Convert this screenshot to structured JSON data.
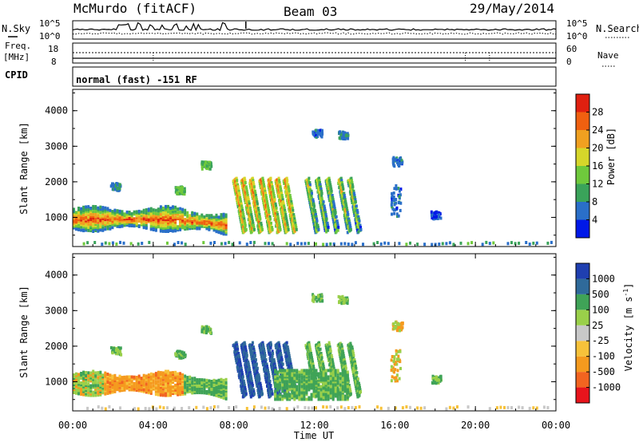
{
  "header": {
    "station": "McMurdo (fitACF)",
    "beam": "Beam 03",
    "date": "29/May/2014"
  },
  "status_panel": {
    "left_top_label": "N.Sky",
    "left_top_ticks": [
      "10^5",
      "10^0"
    ],
    "right_top_label": "N.Search",
    "right_top_ticks": [
      "10^5",
      "10^0"
    ],
    "freq_label": "Freq.",
    "freq_unit": "[MHz]",
    "freq_ticks": [
      "18",
      "8"
    ],
    "nave_label": "Nave",
    "nave_ticks": [
      "60",
      "0"
    ],
    "cpid_label": "CPID",
    "cpid_value": "normal (fast) -151 RF"
  },
  "chart_data": [
    {
      "type": "heatmap",
      "name": "power",
      "ylabel": "Slant Range [km]",
      "xlabel": "",
      "yticks": [
        1000,
        2000,
        3000,
        4000
      ],
      "ylim": [
        180,
        4600
      ],
      "colorbar": {
        "label": "Power [dB]",
        "ticks": [
          "4",
          "8",
          "12",
          "16",
          "20",
          "24",
          "28"
        ],
        "colors": [
          "#0018e8",
          "#2a6fc9",
          "#3aa35a",
          "#6fc93c",
          "#d6d62a",
          "#f0a020",
          "#f06010",
          "#e02010"
        ]
      },
      "features": [
        {
          "x_hours": [
            0.0,
            5.0
          ],
          "range_km": [
            700,
            1450
          ],
          "level_db": [
            12,
            28
          ],
          "desc_kind": "band"
        },
        {
          "x_hours": [
            5.0,
            7.5
          ],
          "range_km": [
            600,
            1200
          ],
          "level_db": [
            16,
            28
          ],
          "desc_kind": "band"
        },
        {
          "x_hours": [
            8.0,
            11.0
          ],
          "range_km": [
            500,
            2200
          ],
          "level_db": [
            12,
            28
          ],
          "desc_kind": "stripes"
        },
        {
          "x_hours": [
            11.5,
            14.0
          ],
          "range_km": [
            600,
            2200
          ],
          "level_db": [
            8,
            28
          ],
          "desc_kind": "stripes"
        },
        {
          "x_hours": [
            15.5,
            16.5
          ],
          "range_km": [
            1200,
            2800
          ],
          "level_db": [
            4,
            12
          ],
          "desc_kind": "patch"
        }
      ]
    },
    {
      "type": "heatmap",
      "name": "velocity",
      "ylabel": "Slant Range [km]",
      "xlabel": "Time UT",
      "yticks": [
        1000,
        2000,
        3000,
        4000
      ],
      "ylim": [
        180,
        4600
      ],
      "xticks": [
        "00:00",
        "04:00",
        "08:00",
        "12:00",
        "16:00",
        "20:00",
        "00:00"
      ],
      "xlim_hours": [
        0,
        24
      ],
      "colorbar": {
        "label": "Velocity [m s",
        "label_sup": "-1",
        "label_end": "]",
        "ticks": [
          "-1000",
          "-500",
          "-100",
          "-25",
          "25",
          "100",
          "500",
          "1000"
        ],
        "colors": [
          "#e8141c",
          "#f26420",
          "#f59a1e",
          "#f7c23a",
          "#c8c8c8",
          "#9ad04a",
          "#3fa357",
          "#2f6a9a",
          "#1f3fb0"
        ]
      }
    }
  ]
}
